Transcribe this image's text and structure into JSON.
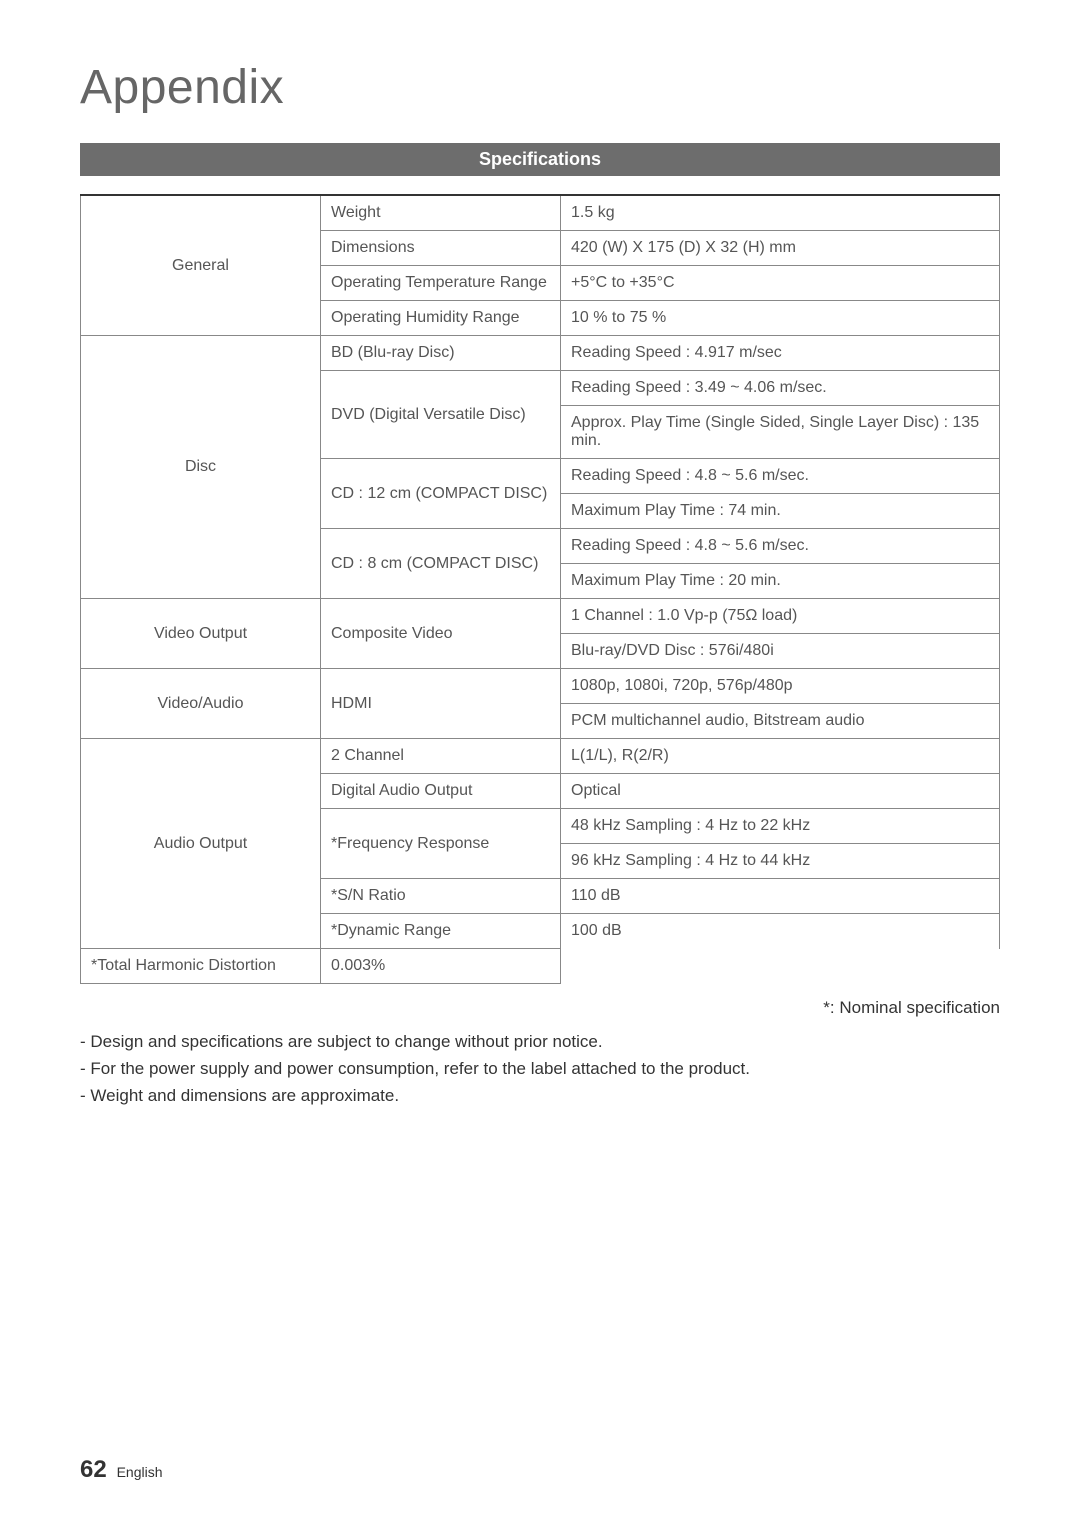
{
  "title": "Appendix",
  "band": "Specifications",
  "table": [
    {
      "cat": "General",
      "catRowspan": 4,
      "mid": "Weight",
      "midRowspan": 1,
      "val": "1.5 kg",
      "topBorder": true
    },
    {
      "mid": "Dimensions",
      "midRowspan": 1,
      "val": "420 (W) X 175 (D) X 32 (H) mm"
    },
    {
      "mid": "Operating Temperature Range",
      "midRowspan": 1,
      "val": "+5°C to +35°C"
    },
    {
      "mid": "Operating Humidity Range",
      "midRowspan": 1,
      "val": "10 % to 75 %"
    },
    {
      "cat": "Disc",
      "catRowspan": 7,
      "mid": "BD (Blu-ray Disc)",
      "midRowspan": 1,
      "val": "Reading Speed : 4.917 m/sec"
    },
    {
      "mid": "DVD (Digital Versatile Disc)",
      "midRowspan": 2,
      "val": "Reading Speed : 3.49 ~ 4.06 m/sec."
    },
    {
      "val": "Approx. Play Time (Single Sided, Single Layer Disc) : 135 min."
    },
    {
      "mid": "CD : 12 cm (COMPACT DISC)",
      "midRowspan": 2,
      "val": "Reading Speed : 4.8 ~ 5.6 m/sec."
    },
    {
      "val": "Maximum Play Time : 74 min."
    },
    {
      "mid": "CD : 8 cm (COMPACT DISC)",
      "midRowspan": 2,
      "val": "Reading Speed : 4.8 ~ 5.6 m/sec."
    },
    {
      "val": "Maximum Play Time : 20 min."
    },
    {
      "cat": "Video Output",
      "catRowspan": 2,
      "mid": "Composite Video",
      "midRowspan": 2,
      "val": "1 Channel : 1.0 Vp-p (75Ω load)"
    },
    {
      "val": "Blu-ray/DVD Disc : 576i/480i"
    },
    {
      "cat": "Video/Audio",
      "catRowspan": 2,
      "mid": "HDMI",
      "midRowspan": 2,
      "val": "1080p, 1080i, 720p, 576p/480p"
    },
    {
      "val": "PCM multichannel audio, Bitstream audio"
    },
    {
      "cat": "Audio Output",
      "catRowspan": 6,
      "mid": "2 Channel",
      "midRowspan": 1,
      "val": "L(1/L), R(2/R)"
    },
    {
      "mid": "Digital Audio Output",
      "midRowspan": 1,
      "val": "Optical"
    },
    {
      "mid": "*Frequency Response",
      "midRowspan": 2,
      "val": "48 kHz Sampling : 4 Hz to 22 kHz"
    },
    {
      "val": "96 kHz Sampling : 4 Hz to 44 kHz"
    },
    {
      "mid": "*S/N Ratio",
      "midRowspan": 1,
      "val": "110 dB"
    },
    {
      "mid": "*Dynamic Range",
      "midRowspan": 1,
      "val": "100 dB"
    },
    {
      "mid": "*Total Harmonic Distortion",
      "midRowspan": 1,
      "val": "0.003%"
    }
  ],
  "footnoteRight": "*: Nominal specification",
  "notes": [
    "Design and specifications are subject to change without prior notice.",
    "For the power supply and power consumption, refer to the label attached to the product.",
    "Weight and dimensions are approximate."
  ],
  "pageNum": "62",
  "pageLang": "English"
}
